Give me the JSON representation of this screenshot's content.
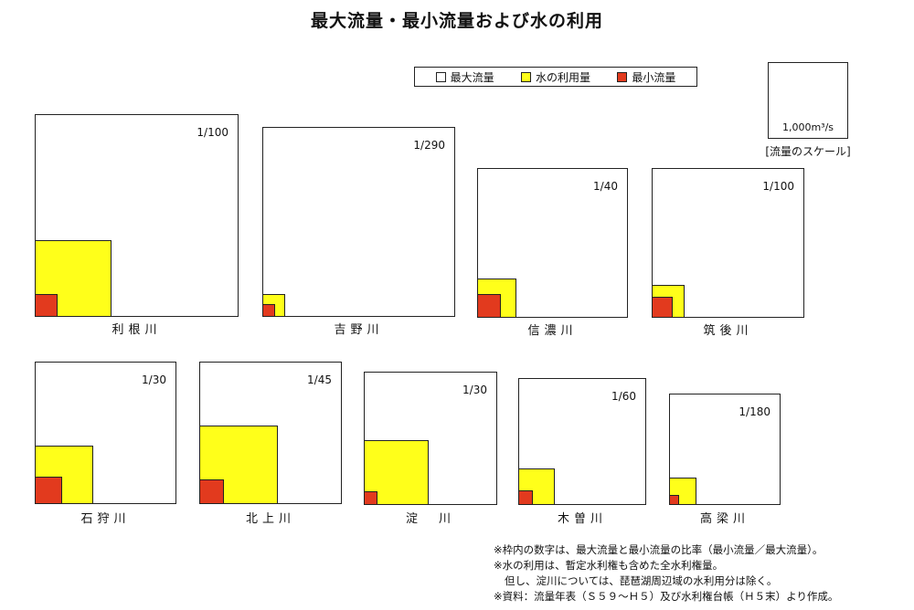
{
  "title": "最大流量・最小流量および水の利用",
  "legend": {
    "max": "最大流量",
    "use": "水の利用量",
    "min": "最小流量",
    "colors": {
      "max": "#ffffff",
      "use": "#ffff1a",
      "min": "#e23a1e"
    }
  },
  "scale": {
    "value": "1,000m³/s",
    "caption": "[流量のスケール]"
  },
  "rivers": [
    {
      "name": "利根川",
      "ratio": "1/100",
      "use_fraction": 0.375,
      "min_fraction": 0.11
    },
    {
      "name": "吉野川",
      "ratio": "1/290",
      "use_fraction": 0.115,
      "min_fraction": 0.06
    },
    {
      "name": "信濃川",
      "ratio": "1/40",
      "use_fraction": 0.26,
      "min_fraction": 0.155
    },
    {
      "name": "筑後川",
      "ratio": "1/100",
      "use_fraction": 0.21,
      "min_fraction": 0.135
    },
    {
      "name": "石狩川",
      "ratio": "1/30",
      "use_fraction": 0.415,
      "min_fraction": 0.19
    },
    {
      "name": "北上川",
      "ratio": "1/45",
      "use_fraction": 0.55,
      "min_fraction": 0.17
    },
    {
      "name": "淀　川",
      "ratio": "1/30",
      "use_fraction": 0.485,
      "min_fraction": 0.1
    },
    {
      "name": "木曽川",
      "ratio": "1/60",
      "use_fraction": 0.285,
      "min_fraction": 0.11
    },
    {
      "name": "高梁川",
      "ratio": "1/180",
      "use_fraction": 0.24,
      "min_fraction": 0.08
    }
  ],
  "notes": [
    "※枠内の数字は、最大流量と最小流量の比率（最小流量／最大流量）。",
    "※水の利用は、暫定水利権も含めた全水利権量。",
    "但し、淀川については、琵琶湖周辺域の水利用分は除く。",
    "※資料：流量年表（Ｓ５９～Ｈ５）及び水利権台帳（Ｈ５末）より作成。"
  ]
}
